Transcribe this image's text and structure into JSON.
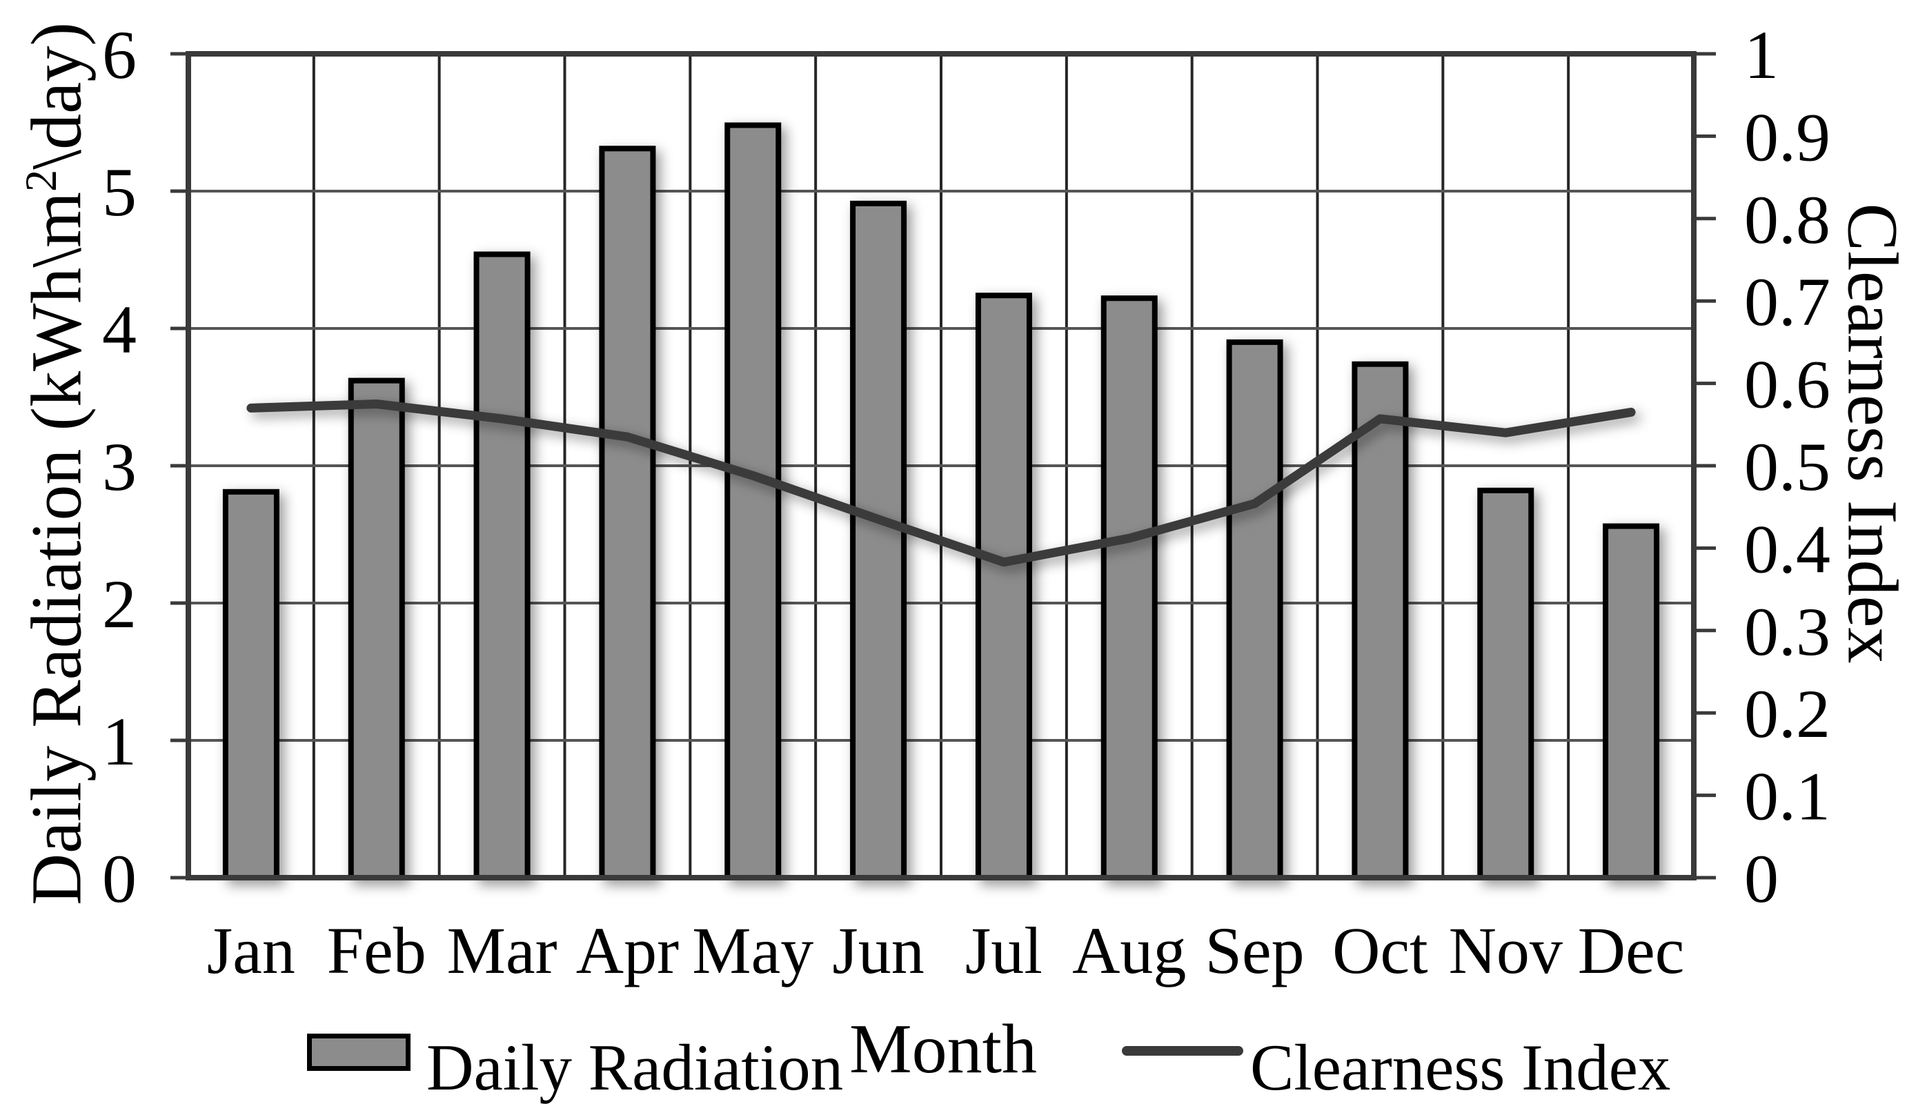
{
  "chart_data": {
    "type": "combo",
    "categories": [
      "Jan",
      "Feb",
      "Mar",
      "Apr",
      "May",
      "Jun",
      "Jul",
      "Aug",
      "Sep",
      "Oct",
      "Nov",
      "Dec"
    ],
    "series": [
      {
        "name": "Daily Radiation",
        "type": "bar",
        "axis": "left",
        "values": [
          2.81,
          3.62,
          4.54,
          5.31,
          5.48,
          4.91,
          4.24,
          4.22,
          3.9,
          3.74,
          2.82,
          2.56
        ]
      },
      {
        "name": "Clearness Index",
        "type": "line",
        "axis": "right",
        "values": [
          0.57,
          0.575,
          0.557,
          0.535,
          0.488,
          0.435,
          0.383,
          0.412,
          0.454,
          0.557,
          0.54,
          0.565
        ]
      }
    ],
    "left_axis": {
      "label_pre": "Daily Radiation (kWh\\m",
      "label_sup": "2",
      "label_post": "\\day)",
      "min": 0,
      "max": 6,
      "ticks": [
        "0",
        "1",
        "2",
        "3",
        "4",
        "5",
        "6"
      ]
    },
    "right_axis": {
      "label": "Clearness Index",
      "min": 0,
      "max": 1,
      "ticks": [
        "0",
        "0.1",
        "0.2",
        "0.3",
        "0.4",
        "0.5",
        "0.6",
        "0.7",
        "0.8",
        "0.9",
        "1"
      ]
    },
    "x_axis": {
      "label": "Month"
    },
    "legend": {
      "position": "bottom-center",
      "items": [
        "Daily Radiation",
        "Clearness Index"
      ]
    },
    "grid": {
      "horizontal": true,
      "vertical": true
    }
  },
  "colors": {
    "background": "#FFFFFF",
    "bar_fill": "#8C8C8C",
    "bar_stroke": "#000000",
    "line": "#3A3A3A",
    "h_grid": "#555555",
    "v_grid": "#262626",
    "border": "#3A3A3A",
    "tick": "#3A3A3A",
    "text": "#000000"
  }
}
